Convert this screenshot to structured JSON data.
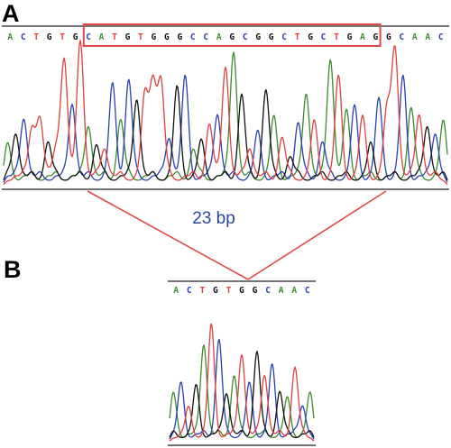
{
  "panels": [
    {
      "label": "A",
      "sequence": [
        "A",
        "C",
        "T",
        "G",
        "T",
        "G",
        "C",
        "A",
        "T",
        "G",
        "T",
        "G",
        "G",
        "G",
        "C",
        "C",
        "A",
        "G",
        "C",
        "G",
        "G",
        "C",
        "T",
        "G",
        "C",
        "T",
        "G",
        "A",
        "G",
        "G",
        "C",
        "A",
        "A",
        "C"
      ],
      "boxed_range": [
        6,
        28
      ],
      "peaks": [
        0.3,
        0.35,
        0.45,
        0.38,
        0.45,
        0.3,
        0.25,
        0.85,
        0.55,
        0.98,
        0.4,
        0.28,
        0.25,
        0.7,
        0.45,
        0.72,
        0.58,
        0.62,
        0.68,
        0.7,
        0.32,
        0.68,
        0.75,
        0.25,
        0.32,
        0.42,
        0.48,
        0.8,
        0.9,
        0.62,
        0.25,
        0.38,
        0.65,
        0.48,
        0.33,
        0.2,
        0.43,
        0.62,
        0.45,
        0.3,
        0.85,
        0.75,
        0.52,
        0.55,
        0.48,
        0.3,
        0.6,
        0.52,
        0.92,
        0.75,
        0.53,
        0.48,
        0.4,
        0.35,
        0.45
      ],
      "peak_colors": [
        "A",
        "G",
        "C",
        "T",
        "T",
        "G",
        "T",
        "T",
        "C",
        "T",
        "A",
        "G",
        "T",
        "C",
        "A",
        "C",
        "G",
        "T",
        "T",
        "T",
        "C",
        "G",
        "C",
        "A",
        "G",
        "T",
        "C",
        "T",
        "A",
        "G",
        "T",
        "C",
        "G",
        "A",
        "T",
        "G",
        "C",
        "A",
        "T",
        "C",
        "A",
        "T",
        "A",
        "C",
        "T",
        "G",
        "C",
        "T",
        "T",
        "C",
        "A",
        "T",
        "G",
        "C",
        "A"
      ]
    },
    {
      "label": "B",
      "sequence": [
        "A",
        "C",
        "T",
        "G",
        "T",
        "G",
        "G",
        "C",
        "A",
        "A",
        "C"
      ],
      "peaks": [
        0.42,
        0.5,
        0.3,
        0.48,
        0.8,
        0.98,
        0.85,
        0.4,
        0.55,
        0.72,
        0.5,
        0.75,
        0.55,
        0.65,
        0.42,
        0.38,
        0.62,
        0.3,
        0.42
      ],
      "peak_colors": [
        "A",
        "C",
        "T",
        "G",
        "A",
        "T",
        "C",
        "G",
        "A",
        "T",
        "C",
        "G",
        "T",
        "C",
        "G",
        "A",
        "T",
        "C",
        "A"
      ]
    }
  ],
  "deletion": {
    "label": "23 bp"
  },
  "base_colors": {
    "A": "#3c8b2c",
    "C": "#2a40b4",
    "G": "#111111",
    "T": "#e04040"
  },
  "box_color": "#e04848",
  "connector_color": "#e04848"
}
